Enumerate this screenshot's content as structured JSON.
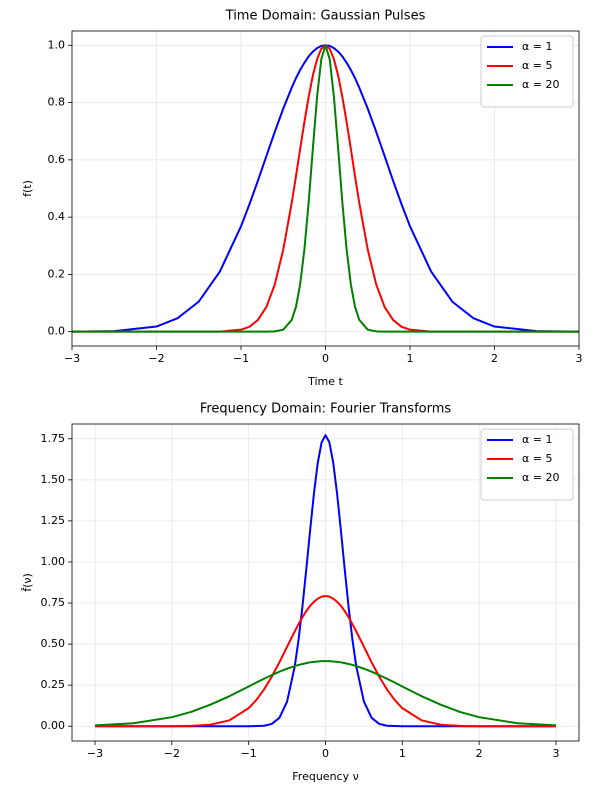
{
  "chart_data": [
    {
      "type": "line",
      "title": "Time Domain: Gaussian Pulses",
      "xlabel": "Time t",
      "ylabel": "f(t)",
      "x": [
        -3,
        -2.5,
        -2,
        -1.75,
        -1.5,
        -1.25,
        -1,
        -0.9,
        -0.8,
        -0.7,
        -0.6,
        -0.5,
        -0.4,
        -0.35,
        -0.3,
        -0.25,
        -0.2,
        -0.15,
        -0.1,
        -0.05,
        0,
        0.05,
        0.1,
        0.15,
        0.2,
        0.25,
        0.3,
        0.35,
        0.4,
        0.5,
        0.6,
        0.7,
        0.8,
        0.9,
        1,
        1.25,
        1.5,
        1.75,
        2,
        2.5,
        3
      ],
      "series": [
        {
          "name": "α = 1",
          "color": "#0000ff",
          "values": [
            0,
            0.002,
            0.018,
            0.047,
            0.105,
            0.21,
            0.368,
            0.445,
            0.527,
            0.613,
            0.698,
            0.779,
            0.852,
            0.885,
            0.914,
            0.939,
            0.961,
            0.978,
            0.99,
            0.998,
            1,
            0.998,
            0.99,
            0.978,
            0.961,
            0.939,
            0.914,
            0.885,
            0.852,
            0.779,
            0.698,
            0.613,
            0.527,
            0.445,
            0.368,
            0.21,
            0.105,
            0.047,
            0.018,
            0.002,
            0
          ]
        },
        {
          "name": "α = 5",
          "color": "#ff0000",
          "values": [
            0,
            0,
            0,
            0,
            0,
            0,
            0.007,
            0.017,
            0.041,
            0.086,
            0.165,
            0.287,
            0.449,
            0.542,
            0.638,
            0.732,
            0.819,
            0.894,
            0.951,
            0.988,
            1,
            0.988,
            0.951,
            0.894,
            0.819,
            0.732,
            0.638,
            0.542,
            0.449,
            0.287,
            0.165,
            0.086,
            0.041,
            0.017,
            0.007,
            0,
            0,
            0,
            0,
            0,
            0
          ]
        },
        {
          "name": "α = 20",
          "color": "#008000",
          "values": [
            0,
            0,
            0,
            0,
            0,
            0,
            0,
            0,
            0,
            0,
            0.001,
            0.007,
            0.041,
            0.086,
            0.165,
            0.287,
            0.449,
            0.638,
            0.819,
            0.951,
            1,
            0.951,
            0.819,
            0.638,
            0.449,
            0.287,
            0.165,
            0.086,
            0.041,
            0.007,
            0.001,
            0,
            0,
            0,
            0,
            0,
            0,
            0,
            0,
            0,
            0
          ]
        }
      ],
      "xlim": [
        -3,
        3
      ],
      "ylim": [
        -0.05,
        1.05
      ],
      "xticks": [
        {
          "value": -3,
          "label": "−3"
        },
        {
          "value": -2,
          "label": "−2"
        },
        {
          "value": -1,
          "label": "−1"
        },
        0,
        1,
        2,
        3
      ],
      "yticks": [
        {
          "value": 0,
          "label": "0.0"
        },
        {
          "value": 0.2,
          "label": "0.2"
        },
        {
          "value": 0.4,
          "label": "0.4"
        },
        {
          "value": 0.6,
          "label": "0.6"
        },
        {
          "value": 0.8,
          "label": "0.8"
        },
        {
          "value": 1,
          "label": "1.0"
        }
      ],
      "grid": true,
      "legend": "upper right"
    },
    {
      "type": "line",
      "title": "Frequency Domain: Fourier Transforms",
      "xlabel": "Frequency ν",
      "ylabel": "f̂(ν)",
      "x": [
        -3,
        -2.5,
        -2,
        -1.75,
        -1.5,
        -1.25,
        -1,
        -0.9,
        -0.8,
        -0.7,
        -0.6,
        -0.5,
        -0.4,
        -0.35,
        -0.3,
        -0.25,
        -0.2,
        -0.15,
        -0.1,
        -0.05,
        0,
        0.05,
        0.1,
        0.15,
        0.2,
        0.25,
        0.3,
        0.35,
        0.4,
        0.5,
        0.6,
        0.7,
        0.8,
        0.9,
        1,
        1.25,
        1.5,
        1.75,
        2,
        2.5,
        3
      ],
      "series": [
        {
          "name": "α = 1",
          "color": "#0000ff",
          "values": [
            0,
            0,
            0,
            0,
            0,
            0,
            0,
            0.001,
            0.003,
            0.014,
            0.051,
            0.15,
            0.365,
            0.529,
            0.729,
            0.956,
            1.194,
            1.419,
            1.606,
            1.729,
            1.772,
            1.729,
            1.606,
            1.419,
            1.194,
            0.956,
            0.729,
            0.529,
            0.365,
            0.15,
            0.051,
            0.014,
            0.003,
            0.001,
            0,
            0,
            0,
            0,
            0,
            0,
            0
          ]
        },
        {
          "name": "α = 5",
          "color": "#ff0000",
          "values": [
            0,
            0,
            0,
            0.002,
            0.009,
            0.036,
            0.11,
            0.16,
            0.224,
            0.301,
            0.389,
            0.484,
            0.578,
            0.622,
            0.664,
            0.701,
            0.733,
            0.758,
            0.777,
            0.789,
            0.793,
            0.789,
            0.777,
            0.758,
            0.733,
            0.701,
            0.664,
            0.622,
            0.578,
            0.484,
            0.389,
            0.301,
            0.224,
            0.16,
            0.11,
            0.036,
            0.009,
            0.002,
            0,
            0,
            0
          ]
        },
        {
          "name": "α = 20",
          "color": "#008000",
          "values": [
            0.005,
            0.018,
            0.055,
            0.087,
            0.131,
            0.183,
            0.242,
            0.266,
            0.289,
            0.311,
            0.332,
            0.35,
            0.366,
            0.373,
            0.379,
            0.384,
            0.389,
            0.392,
            0.394,
            0.396,
            0.396,
            0.396,
            0.394,
            0.392,
            0.389,
            0.384,
            0.379,
            0.373,
            0.366,
            0.35,
            0.332,
            0.311,
            0.289,
            0.266,
            0.242,
            0.183,
            0.131,
            0.087,
            0.055,
            0.018,
            0.005
          ]
        }
      ],
      "xlim": [
        -3.3,
        3.3
      ],
      "ylim": [
        -0.09,
        1.84
      ],
      "xticks": [
        {
          "value": -3,
          "label": "−3"
        },
        {
          "value": -2,
          "label": "−2"
        },
        {
          "value": -1,
          "label": "−1"
        },
        0,
        1,
        2,
        3
      ],
      "yticks": [
        {
          "value": 0,
          "label": "0.00"
        },
        {
          "value": 0.25,
          "label": "0.25"
        },
        {
          "value": 0.5,
          "label": "0.50"
        },
        {
          "value": 0.75,
          "label": "0.75"
        },
        {
          "value": 1,
          "label": "1.00"
        },
        {
          "value": 1.25,
          "label": "1.25"
        },
        {
          "value": 1.5,
          "label": "1.50"
        },
        {
          "value": 1.75,
          "label": "1.75"
        }
      ],
      "grid": true,
      "legend": "upper right"
    }
  ]
}
